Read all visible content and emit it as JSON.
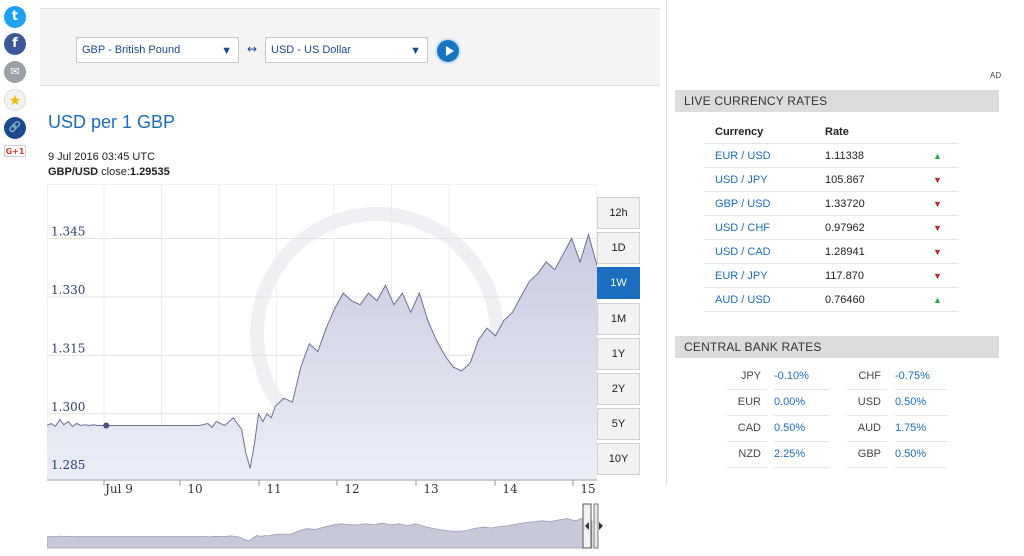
{
  "social": [
    {
      "name": "twitter-icon",
      "color": "#1da1f2",
      "glyph": "t"
    },
    {
      "name": "facebook-icon",
      "color": "#3b5998",
      "glyph": "f"
    },
    {
      "name": "email-icon",
      "color": "#9aa0a6",
      "glyph": "✉"
    },
    {
      "name": "favorite-icon",
      "color": "#f2f2f2",
      "glyph": "★"
    },
    {
      "name": "link-icon",
      "color": "#1b4a93",
      "glyph": "🔗"
    },
    {
      "name": "google-plus-icon",
      "color": "#fff",
      "glyph": "G+1"
    }
  ],
  "converter": {
    "from": "GBP - British Pound",
    "to": "USD - US Dollar",
    "swap_symbol": "↔"
  },
  "chart_header": {
    "title": "USD per 1 GBP",
    "date": "9 Jul 2016 03:45 UTC",
    "close_label": "GBP/USD",
    "close_text": " close:",
    "close_value": "1.29535"
  },
  "ranges": [
    "12h",
    "1D",
    "1W",
    "1M",
    "1Y",
    "2Y",
    "5Y",
    "10Y"
  ],
  "active_range": "1W",
  "ad_label": "AD",
  "live_rates": {
    "title": "LIVE CURRENCY RATES",
    "col_currency": "Currency",
    "col_rate": "Rate",
    "rows": [
      {
        "pair": "EUR / USD",
        "rate": "1.11338",
        "trend": "up"
      },
      {
        "pair": "USD / JPY",
        "rate": "105.867",
        "trend": "down"
      },
      {
        "pair": "GBP / USD",
        "rate": "1.33720",
        "trend": "down"
      },
      {
        "pair": "USD / CHF",
        "rate": "0.97962",
        "trend": "down"
      },
      {
        "pair": "USD / CAD",
        "rate": "1.28941",
        "trend": "down"
      },
      {
        "pair": "EUR / JPY",
        "rate": "117.870",
        "trend": "down"
      },
      {
        "pair": "AUD / USD",
        "rate": "0.76460",
        "trend": "up"
      }
    ]
  },
  "central_banks": {
    "title": "CENTRAL BANK RATES",
    "rows": [
      {
        "left_code": "JPY",
        "left_rate": "-0.10%",
        "right_code": "CHF",
        "right_rate": "-0.75%"
      },
      {
        "left_code": "EUR",
        "left_rate": "0.00%",
        "right_code": "USD",
        "right_rate": "0.50%"
      },
      {
        "left_code": "CAD",
        "left_rate": "0.50%",
        "right_code": "AUD",
        "right_rate": "1.75%"
      },
      {
        "left_code": "NZD",
        "left_rate": "2.25%",
        "right_code": "GBP",
        "right_rate": "0.50%"
      }
    ]
  },
  "chart_data": {
    "type": "area",
    "title": "USD per 1 GBP",
    "xlabel": "",
    "ylabel": "",
    "x_ticks": [
      "Jul 9",
      "10",
      "11",
      "12",
      "13",
      "14",
      "15"
    ],
    "y_ticks": [
      1.285,
      1.3,
      1.315,
      1.33,
      1.345
    ],
    "ylim": [
      1.283,
      1.359
    ],
    "xlim": [
      0,
      6.5
    ],
    "grid": true,
    "series": [
      {
        "x": [
          0,
          0.05,
          0.1,
          0.15,
          0.2,
          0.25,
          0.3,
          0.35,
          0.4,
          0.45,
          0.5,
          0.55,
          0.6,
          0.7,
          0.8,
          0.9,
          1.0,
          1.2,
          1.4,
          1.6,
          1.8,
          1.9,
          1.95,
          2.0,
          2.1,
          2.2,
          2.25,
          2.3,
          2.35,
          2.4,
          2.45,
          2.5,
          2.55,
          2.6,
          2.65,
          2.7,
          2.8,
          2.9,
          3.0,
          3.1,
          3.2,
          3.3,
          3.4,
          3.5,
          3.6,
          3.7,
          3.8,
          3.9,
          4.0,
          4.1,
          4.2,
          4.3,
          4.4,
          4.5,
          4.6,
          4.7,
          4.8,
          4.9,
          5.0,
          5.1,
          5.2,
          5.3,
          5.4,
          5.5,
          5.6,
          5.7,
          5.8,
          5.9,
          6.0,
          6.1,
          6.2,
          6.3,
          6.4,
          6.5
        ],
        "values": [
          1.297,
          1.2975,
          1.2968,
          1.2985,
          1.2972,
          1.298,
          1.2968,
          1.2975,
          1.297,
          1.2972,
          1.297,
          1.2972,
          1.297,
          1.297,
          1.297,
          1.297,
          1.297,
          1.297,
          1.297,
          1.297,
          1.297,
          1.2975,
          1.2965,
          1.298,
          1.297,
          1.299,
          1.2975,
          1.296,
          1.29,
          1.286,
          1.292,
          1.3,
          1.298,
          1.3,
          1.299,
          1.302,
          1.304,
          1.303,
          1.312,
          1.318,
          1.316,
          1.322,
          1.327,
          1.331,
          1.329,
          1.328,
          1.331,
          1.329,
          1.333,
          1.328,
          1.331,
          1.326,
          1.331,
          1.324,
          1.319,
          1.315,
          1.312,
          1.311,
          1.313,
          1.319,
          1.322,
          1.32,
          1.324,
          1.326,
          1.33,
          1.334,
          1.336,
          1.339,
          1.337,
          1.341,
          1.345,
          1.339,
          1.346,
          1.338
        ]
      }
    ],
    "marker_x": 0.7,
    "marker_value": 1.297
  }
}
